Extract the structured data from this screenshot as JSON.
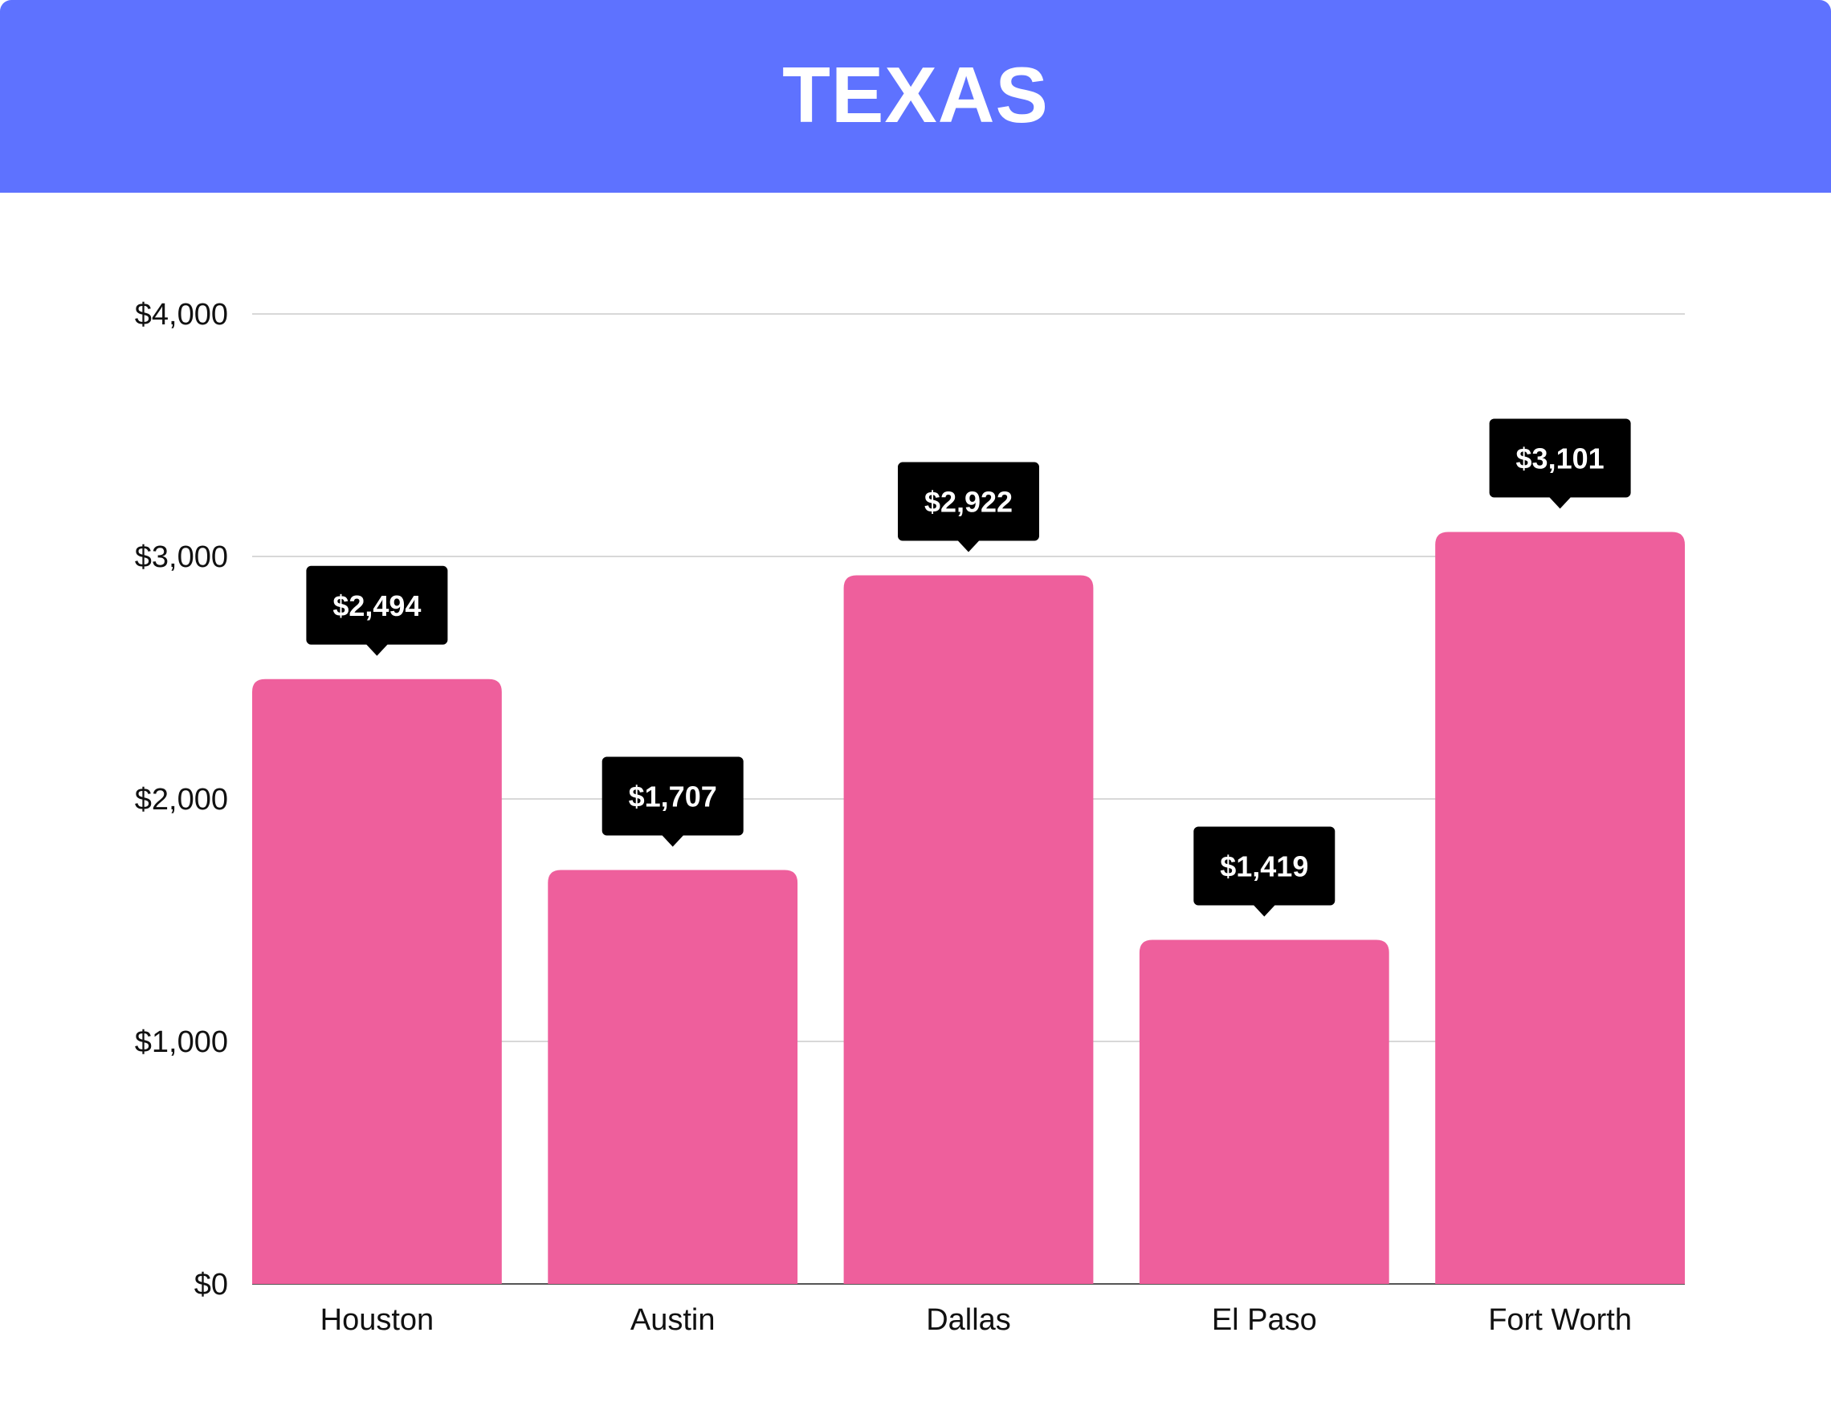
{
  "header": {
    "title": "TEXAS",
    "background_color": "#5E72FF"
  },
  "chart_data": {
    "type": "bar",
    "title": "TEXAS",
    "categories": [
      "Houston",
      "Austin",
      "Dallas",
      "El Paso",
      "Fort Worth"
    ],
    "values": [
      2494,
      1707,
      2922,
      1419,
      3101
    ],
    "data_labels": [
      "$2,494",
      "$1,707",
      "$2,922",
      "$1,419",
      "$3,101"
    ],
    "y_ticks": [
      0,
      1000,
      2000,
      3000,
      4000
    ],
    "y_tick_labels": [
      "$0",
      "$1,000",
      "$2,000",
      "$3,000",
      "$4,000"
    ],
    "ylim": [
      0,
      4000
    ],
    "xlabel": "",
    "ylabel": "",
    "grid": true,
    "legend": "none",
    "colors": {
      "bar": "#EE5F9C",
      "label_box": "#000000",
      "label_text": "#ffffff",
      "grid": "#cccccc",
      "axis_text": "#111111"
    }
  }
}
